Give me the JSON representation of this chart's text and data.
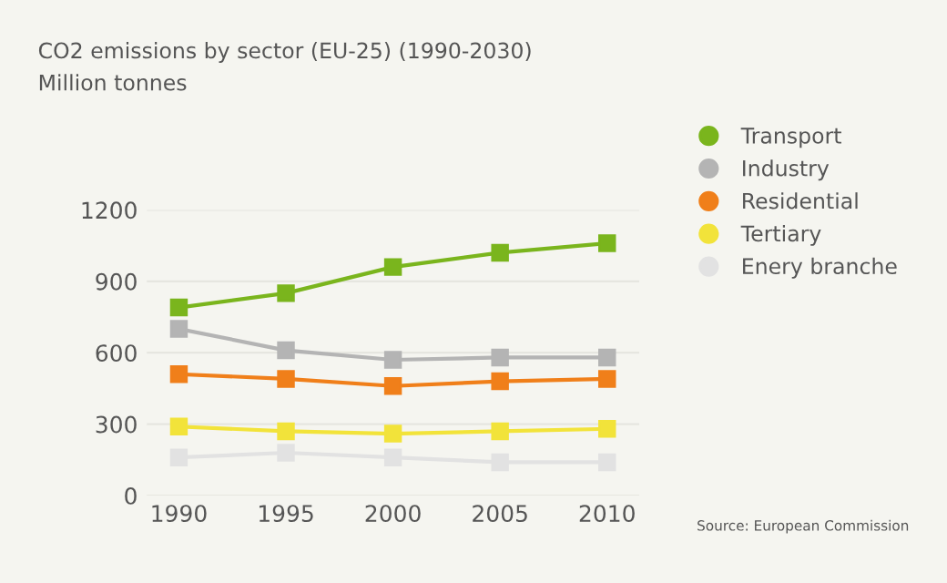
{
  "chart_data": {
    "type": "line",
    "title": "CO2 emissions by sector (EU-25) (1990-2030)",
    "subtitle": "Million tonnes",
    "x": [
      1990,
      1995,
      2000,
      2005,
      2010
    ],
    "series": [
      {
        "name": "Transport",
        "color": "#7ab51d",
        "values": [
          790,
          850,
          960,
          1020,
          1060
        ]
      },
      {
        "name": "Industry",
        "color": "#b4b4b4",
        "values": [
          700,
          610,
          570,
          580,
          580
        ]
      },
      {
        "name": "Residential",
        "color": "#f07f1a",
        "values": [
          510,
          490,
          460,
          480,
          490
        ]
      },
      {
        "name": "Tertiary",
        "color": "#f2e33a",
        "values": [
          290,
          270,
          260,
          270,
          280
        ]
      },
      {
        "name": "Enery branche",
        "color": "#e2e2e2",
        "values": [
          160,
          180,
          160,
          140,
          140
        ]
      }
    ],
    "xlim": [
      1988.5,
      2011.5
    ],
    "xticks": [
      1990,
      1995,
      2000,
      2005,
      2010
    ],
    "ylim": [
      0,
      1200
    ],
    "yticks": [
      0,
      300,
      600,
      900,
      1200
    ],
    "grid": "y",
    "legend": "top right",
    "marker": "square",
    "line_style": "solid",
    "annotations": [
      "Source: European Commission"
    ]
  }
}
